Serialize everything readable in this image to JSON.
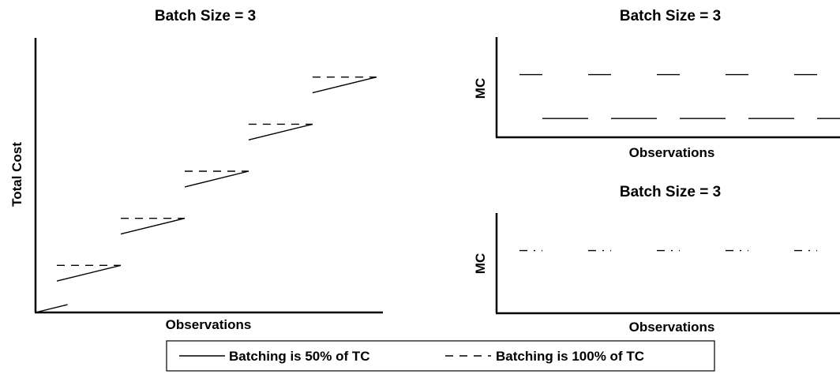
{
  "chart_data": [
    {
      "type": "line",
      "title": "Batch Size = 3",
      "xlabel": "Observations",
      "ylabel": "Total Cost",
      "xlim": [
        0,
        20
      ],
      "ylim": [
        0,
        17.5
      ],
      "ticks": "none",
      "series": [
        {
          "name": "Batching is 50% of TC",
          "style": "solid",
          "segments": [
            [
              [
                0,
                0
              ],
              [
                1.5,
                0.5
              ]
            ],
            [
              [
                1,
                2
              ],
              [
                4,
                3
              ]
            ],
            [
              [
                4,
                5
              ],
              [
                7,
                6
              ]
            ],
            [
              [
                7,
                8
              ],
              [
                10,
                9
              ]
            ],
            [
              [
                10,
                11
              ],
              [
                13,
                12
              ]
            ],
            [
              [
                13,
                14
              ],
              [
                16,
                15
              ]
            ]
          ]
        },
        {
          "name": "Batching is 100% of TC",
          "style": "dashed",
          "segments": [
            [
              [
                1,
                3
              ],
              [
                4,
                3
              ]
            ],
            [
              [
                4,
                6
              ],
              [
                7,
                6
              ]
            ],
            [
              [
                7,
                9
              ],
              [
                10,
                9
              ]
            ],
            [
              [
                10,
                12
              ],
              [
                13,
                12
              ]
            ],
            [
              [
                13,
                15
              ],
              [
                16,
                15
              ]
            ]
          ]
        }
      ]
    },
    {
      "type": "line",
      "title": "Batch Size = 3",
      "xlabel": "Observations",
      "ylabel": "MC",
      "ylim": [
        0,
        1.6
      ],
      "ticks": "none",
      "series": [
        {
          "name": "Batching is 50% of TC",
          "style": "solid",
          "segments": [
            [
              [
                1,
                1
              ],
              [
                2,
                1
              ]
            ],
            [
              [
                2,
                0.3
              ],
              [
                4,
                0.3
              ]
            ],
            [
              [
                4,
                1
              ],
              [
                5,
                1
              ]
            ],
            [
              [
                5,
                0.3
              ],
              [
                7,
                0.3
              ]
            ],
            [
              [
                7,
                1
              ],
              [
                8,
                1
              ]
            ],
            [
              [
                8,
                0.3
              ],
              [
                10,
                0.3
              ]
            ],
            [
              [
                10,
                1
              ],
              [
                11,
                1
              ]
            ],
            [
              [
                11,
                0.3
              ],
              [
                13,
                0.3
              ]
            ],
            [
              [
                13,
                1
              ],
              [
                14,
                1
              ]
            ],
            [
              [
                14,
                0.3
              ],
              [
                15,
                0.3
              ]
            ]
          ]
        }
      ]
    },
    {
      "type": "line",
      "title": "Batch Size = 3",
      "xlabel": "Observations",
      "ylabel": "MC",
      "ylim": [
        0,
        1.6
      ],
      "ticks": "none",
      "series": [
        {
          "name": "Batching is 100% of TC",
          "style": "dashed",
          "segments": [
            [
              [
                1,
                1
              ],
              [
                2,
                1
              ]
            ],
            [
              [
                4,
                1
              ],
              [
                5,
                1
              ]
            ],
            [
              [
                7,
                1
              ],
              [
                8,
                1
              ]
            ],
            [
              [
                10,
                1
              ],
              [
                11,
                1
              ]
            ],
            [
              [
                13,
                1
              ],
              [
                14,
                1
              ]
            ]
          ]
        }
      ]
    }
  ],
  "legend": {
    "placement": "bottom-center",
    "items": [
      {
        "label": "Batching is 50% of TC",
        "style": "solid"
      },
      {
        "label": "Batching is 100% of TC",
        "style": "dashed"
      }
    ]
  }
}
